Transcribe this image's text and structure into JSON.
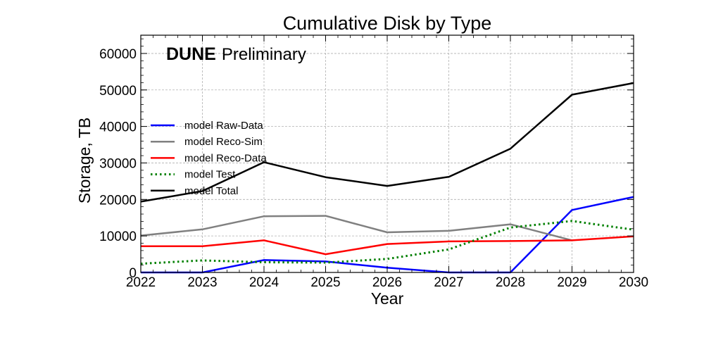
{
  "chart_data": {
    "type": "line",
    "title": "Cumulative Disk by Type",
    "xlabel": "Year",
    "ylabel": "Storage, TB",
    "x": [
      2022,
      2023,
      2024,
      2025,
      2026,
      2027,
      2028,
      2029,
      2030
    ],
    "xlim": [
      2022,
      2030
    ],
    "ylim": [
      0,
      65000
    ],
    "xticks": [
      2022,
      2023,
      2024,
      2025,
      2026,
      2027,
      2028,
      2029,
      2030
    ],
    "yticks": [
      0,
      10000,
      20000,
      30000,
      40000,
      50000,
      60000
    ],
    "grid": true,
    "legend_position": "center-left",
    "annotation": {
      "bold": "DUNE",
      "text": "Preliminary"
    },
    "series": [
      {
        "name": "model Raw-Data",
        "color": "#0000ff",
        "style": "solid",
        "values": [
          0,
          0,
          3400,
          3000,
          1300,
          0,
          0,
          17100,
          20700
        ]
      },
      {
        "name": "model Reco-Sim",
        "color": "#808080",
        "style": "solid",
        "values": [
          10100,
          11800,
          15400,
          15500,
          11000,
          11400,
          13200,
          8800,
          null
        ]
      },
      {
        "name": "model Reco-Data",
        "color": "#ff0000",
        "style": "solid",
        "values": [
          7200,
          7200,
          8800,
          5000,
          7800,
          8500,
          8600,
          8800,
          9900
        ]
      },
      {
        "name": "model Test",
        "color": "#008000",
        "style": "dotted",
        "values": [
          2400,
          3300,
          2800,
          2700,
          3700,
          6300,
          12300,
          14100,
          11700
        ]
      },
      {
        "name": "model Total",
        "color": "#000000",
        "style": "solid",
        "values": [
          19400,
          22300,
          30200,
          26100,
          23700,
          26200,
          33900,
          48700,
          51900
        ]
      }
    ]
  }
}
